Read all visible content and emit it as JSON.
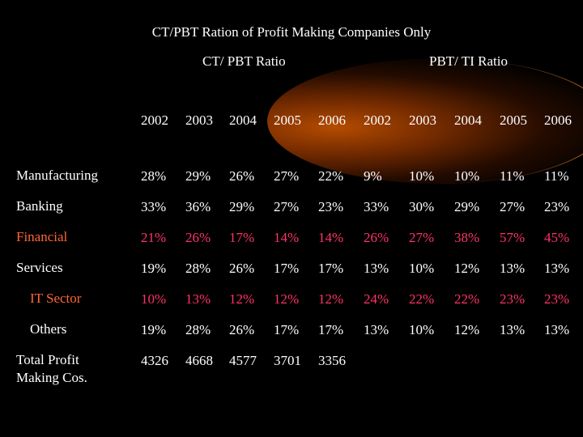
{
  "title": "CT/PBT Ration of Profit Making Companies Only",
  "groups": {
    "ct_pbt": "CT/ PBT Ratio",
    "pbt_ti": "PBT/ TI Ratio"
  },
  "years": [
    "2002",
    "2003",
    "2004",
    "2005",
    "2006",
    "2002",
    "2003",
    "2004",
    "2005",
    "2006"
  ],
  "colors": {
    "white": "#ffffff",
    "highlight_label": "#ff6633",
    "highlight_value": "#ff3366"
  },
  "rows": [
    {
      "label": "Manufacturing",
      "highlight": false,
      "values": [
        "28%",
        "29%",
        "26%",
        "27%",
        "22%",
        "9%",
        "10%",
        "10%",
        "11%",
        "11%"
      ]
    },
    {
      "label": "Banking",
      "highlight": false,
      "values": [
        "33%",
        "36%",
        "29%",
        "27%",
        "23%",
        "33%",
        "30%",
        "29%",
        "27%",
        "23%"
      ]
    },
    {
      "label": "Financial",
      "highlight": true,
      "values": [
        "21%",
        "26%",
        "17%",
        "14%",
        "14%",
        "26%",
        "27%",
        "38%",
        "57%",
        "45%"
      ]
    },
    {
      "label": "Services",
      "highlight": false,
      "values": [
        "19%",
        "28%",
        "26%",
        "17%",
        "17%",
        "13%",
        "10%",
        "12%",
        "13%",
        "13%"
      ]
    },
    {
      "label": "IT Sector",
      "highlight": true,
      "values": [
        "10%",
        "13%",
        "12%",
        "12%",
        "12%",
        "24%",
        "22%",
        "22%",
        "23%",
        "23%"
      ]
    },
    {
      "label": "Others",
      "highlight": false,
      "values": [
        "19%",
        "28%",
        "26%",
        "17%",
        "17%",
        "13%",
        "10%",
        "12%",
        "13%",
        "13%"
      ]
    },
    {
      "label": "Total Profit\nMaking Cos.",
      "highlight": false,
      "values": [
        "4326",
        "4668",
        "4577",
        "3701",
        "3356"
      ]
    }
  ]
}
